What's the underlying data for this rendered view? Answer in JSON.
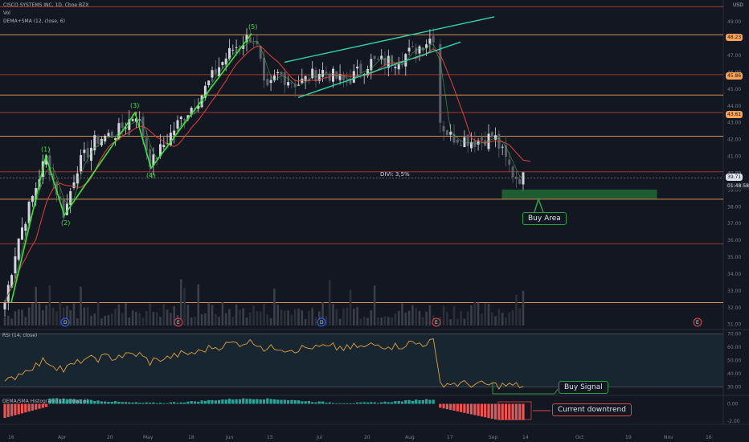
{
  "header": {
    "symbol_line": "CISCO SYSTEMS INC, 1D, Cboe BZX",
    "vol_label": "Vol",
    "ma_label": "DEMA+SMA (12, close, 6)",
    "currency": "USD"
  },
  "annotations": {
    "divi": "DIVI: 3,5%",
    "buy_area": "Buy Area",
    "buy_signal": "Buy Signal",
    "current_downtrend": "Current downtrend"
  },
  "price_labels": {
    "current": "39.71",
    "countdown": "01:48:58",
    "fib_a": "48.23",
    "fib_b": "45.86",
    "fib_c": "43.61"
  },
  "event_markers": [
    "D",
    "E",
    "D",
    "E",
    "E"
  ],
  "rsi_panel": {
    "title": "RSI (14, close)"
  },
  "hist_panel": {
    "title": "DEMA/SMA Histogram (12, close, 6)"
  },
  "colors": {
    "background": "#131722",
    "bull": "#d1d4dc",
    "bear": "#5d606b",
    "wave": "#39e639",
    "channel": "#2fd5a4",
    "fib_line": "#f7a35c",
    "sma": "#e0413a",
    "dema": "#4caf50",
    "rsi": "#e3a03a",
    "hist_pos": "#26a69a",
    "hist_neg": "#ef5350",
    "buy_area": "#2ea043",
    "downtrend_box": "#e04545"
  },
  "chart_data": [
    {
      "type": "candlestick",
      "title": "CISCO SYSTEMS INC, 1D, Cboe BZX",
      "x_ticks": [
        "16",
        "Apr",
        "20",
        "May",
        "18",
        "Jun",
        "15",
        "Jul",
        "20",
        "Aug",
        "17",
        "Sep",
        "14",
        "Oct",
        "19",
        "Nov",
        "16"
      ],
      "y_ticks": [
        49.0,
        48.0,
        47.0,
        46.0,
        45.0,
        44.0,
        43.0,
        42.0,
        41.0,
        40.0,
        39.0,
        38.0,
        37.0,
        36.0,
        35.0,
        34.0,
        33.0,
        32.0,
        31.0
      ],
      "ylim": [
        30.7,
        50.3
      ],
      "horizontal_levels": [
        49.9,
        48.23,
        45.86,
        44.65,
        43.61,
        42.2,
        40.08,
        38.45,
        35.8,
        32.3
      ],
      "elliott_waves": [
        {
          "label": "(1)",
          "value": 41.0
        },
        {
          "label": "(2)",
          "value": 37.5
        },
        {
          "label": "(3)",
          "value": 43.6
        },
        {
          "label": "(4)",
          "value": 40.3
        },
        {
          "label": "(5)",
          "value": 48.3
        }
      ],
      "rising_wedge": {
        "upper": [
          [
            354,
            46.6
          ],
          [
            615,
            49.3
          ]
        ],
        "lower": [
          [
            371,
            44.5
          ],
          [
            573,
            47.8
          ]
        ]
      },
      "buy_area": [
        38.5,
        39.0
      ],
      "last_price": 39.71
    },
    {
      "type": "line",
      "title": "RSI (14, close)",
      "y_ticks": [
        70.0,
        60.0,
        50.0,
        40.0,
        30.0
      ],
      "ylim": [
        25,
        72
      ],
      "bands": [
        30,
        70
      ]
    },
    {
      "type": "bar",
      "title": "DEMA/SMA Histogram (12, close, 6)",
      "y_ticks": [
        0.0,
        -2.0
      ],
      "ylim": [
        -2.3,
        0.8
      ]
    }
  ]
}
